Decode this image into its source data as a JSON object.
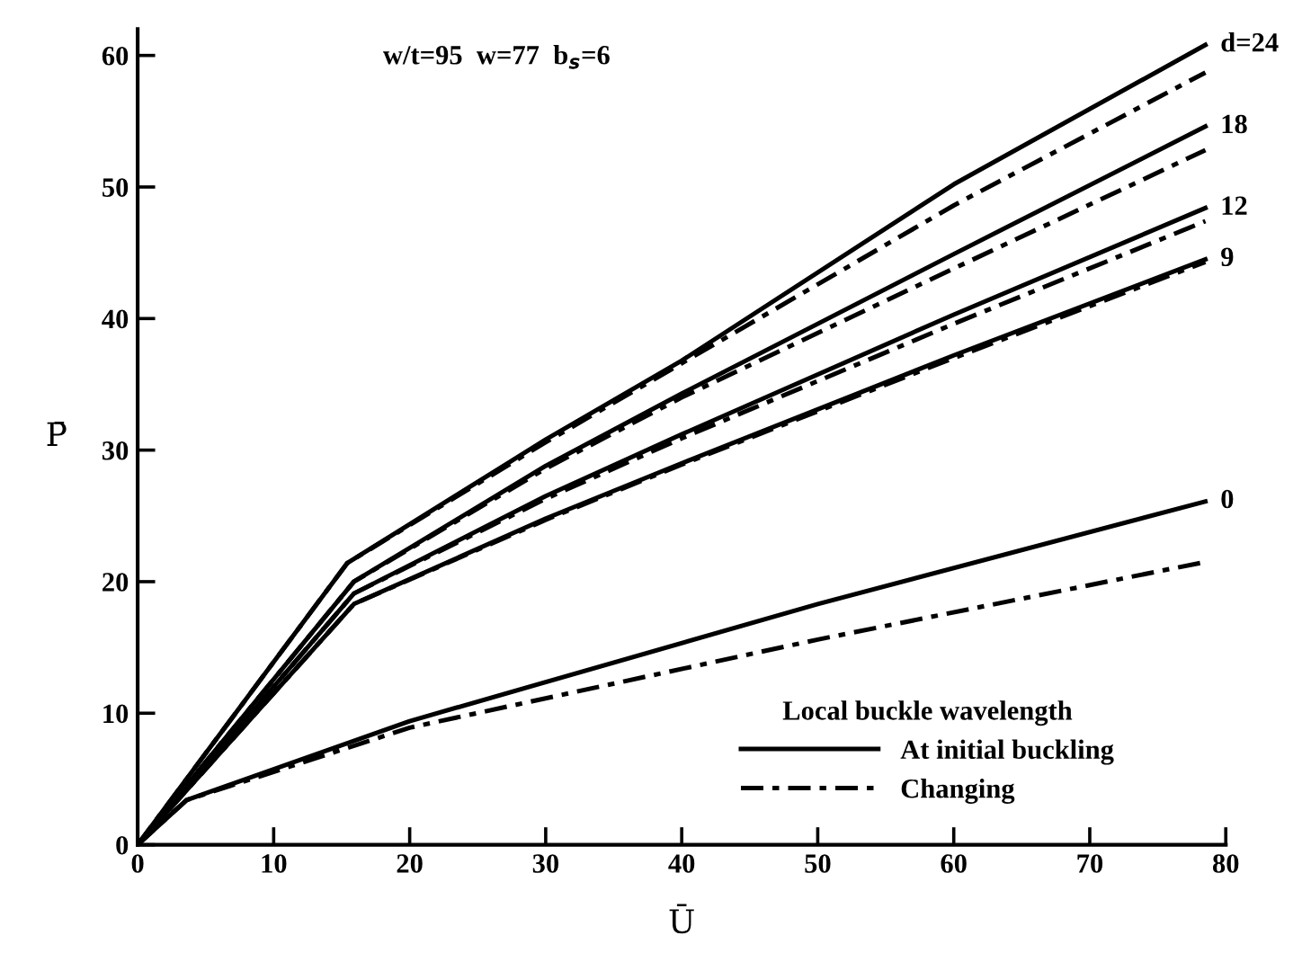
{
  "chart_data": {
    "type": "line",
    "xlabel": "Ū",
    "ylabel": "P̄",
    "legend_title": "Local buckle wavelength",
    "legend": "bottom right",
    "grid": false,
    "marker": "none",
    "xlim": [
      0,
      80
    ],
    "ylim": [
      0,
      62
    ],
    "xticks": [
      0,
      10,
      20,
      30,
      40,
      50,
      60,
      70,
      80
    ],
    "yticks": [
      0,
      10,
      20,
      30,
      40,
      50,
      60
    ],
    "series": [
      {
        "name": "At initial buckling",
        "color": "#000000",
        "line_style": "solid",
        "x": [
          0,
          15.4,
          30,
          40,
          60,
          78.5
        ],
        "values": [
          0,
          21.4,
          30.8,
          36.8,
          50.2,
          60.8
        ]
      },
      {
        "name": "Changing",
        "color": "#000000",
        "line_style": "dashdot",
        "x": [
          0,
          15.4,
          30,
          40,
          60,
          78.5
        ],
        "values": [
          0,
          21.4,
          30.6,
          36.6,
          48.6,
          58.7
        ]
      },
      {
        "color": "#000000",
        "line_style": "solid",
        "x": [
          0,
          15.9,
          30,
          40,
          60,
          78.5
        ],
        "values": [
          0,
          20.0,
          28.8,
          34.3,
          44.9,
          54.6
        ]
      },
      {
        "color": "#000000",
        "line_style": "dashdot",
        "x": [
          0,
          15.9,
          30,
          40,
          60,
          78.5
        ],
        "values": [
          0,
          20.0,
          28.6,
          34.0,
          43.8,
          52.8
        ]
      },
      {
        "color": "#000000",
        "line_style": "solid",
        "x": [
          0,
          15.9,
          30,
          40,
          60,
          78.5
        ],
        "values": [
          0,
          19.1,
          26.5,
          31.2,
          40.3,
          48.4
        ]
      },
      {
        "color": "#000000",
        "line_style": "dashdot",
        "x": [
          0,
          15.9,
          30,
          40,
          60,
          78.5
        ],
        "values": [
          0,
          19.1,
          26.3,
          30.9,
          39.6,
          47.4
        ]
      },
      {
        "color": "#000000",
        "line_style": "solid",
        "x": [
          0,
          15.9,
          30,
          40,
          60,
          78.5
        ],
        "values": [
          0,
          18.3,
          24.8,
          29.0,
          37.2,
          44.5
        ]
      },
      {
        "color": "#000000",
        "line_style": "dashdot",
        "x": [
          0,
          15.9,
          30,
          40,
          60,
          78.5
        ],
        "values": [
          0,
          18.3,
          24.7,
          28.9,
          37.0,
          44.3
        ]
      },
      {
        "color": "#000000",
        "line_style": "solid",
        "x": [
          0,
          3.6,
          20,
          50,
          78.5
        ],
        "values": [
          0,
          3.4,
          9.4,
          18.3,
          26.1
        ]
      },
      {
        "color": "#000000",
        "line_style": "dashdot",
        "x": [
          0,
          3.6,
          20,
          50,
          78.5
        ],
        "values": [
          0,
          3.4,
          8.9,
          15.6,
          21.5
        ]
      }
    ],
    "annotations": [
      "w/t=95  w=77  b$_{s}$=6",
      "d=24",
      "18",
      "12",
      "9",
      "0"
    ]
  }
}
